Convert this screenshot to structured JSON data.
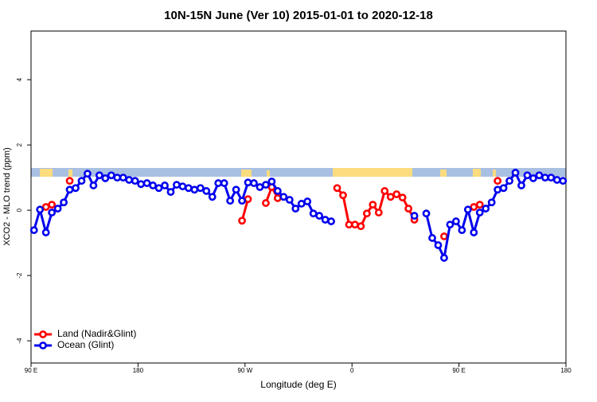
{
  "chart_data": {
    "type": "line",
    "title": "10N-15N June (Ver 10)   2015-01-01 to 2020-12-18",
    "xlabel": "Longitude (deg E)",
    "ylabel": "XCO2 - MLO trend (ppm)",
    "x": [
      92.5,
      97.5,
      102.5,
      107.5,
      112.5,
      117.5,
      122.5,
      127.5,
      132.5,
      137.5,
      142.5,
      147.5,
      152.5,
      157.5,
      162.5,
      167.5,
      172.5,
      177.5,
      182.5,
      187.5,
      192.5,
      197.5,
      202.5,
      207.5,
      212.5,
      217.5,
      222.5,
      227.5,
      232.5,
      237.5,
      242.5,
      247.5,
      252.5,
      257.5,
      262.5,
      267.5,
      272.5,
      277.5,
      282.5,
      287.5,
      292.5,
      297.5,
      302.5,
      307.5,
      312.5,
      317.5,
      322.5,
      327.5,
      332.5,
      337.5,
      342.5,
      347.5,
      352.5,
      357.5,
      362.5,
      367.5,
      372.5,
      377.5,
      382.5,
      387.5,
      392.5,
      397.5,
      402.5,
      407.5,
      412.5,
      417.5,
      422.5,
      427.5,
      432.5,
      437.5,
      442.5,
      447.5,
      452.5,
      457.5,
      462.5,
      467.5,
      472.5,
      477.5,
      482.5,
      487.5,
      492.5,
      497.5,
      502.5,
      507.5,
      512.5,
      517.5,
      522.5,
      527.5,
      532.5,
      537.5
    ],
    "series": [
      {
        "name": "Land (Nadir&Glint)",
        "color": "#ff0000",
        "values": [
          null,
          null,
          0.1,
          0.17,
          null,
          null,
          0.9,
          null,
          null,
          null,
          null,
          null,
          null,
          null,
          null,
          null,
          null,
          null,
          null,
          null,
          null,
          null,
          null,
          null,
          null,
          null,
          null,
          null,
          null,
          null,
          null,
          null,
          null,
          null,
          null,
          -0.32,
          0.34,
          null,
          null,
          0.22,
          0.71,
          0.37,
          null,
          null,
          null,
          null,
          null,
          null,
          null,
          null,
          null,
          0.68,
          0.46,
          -0.44,
          -0.44,
          -0.49,
          -0.1,
          0.17,
          -0.07,
          0.59,
          0.41,
          0.49,
          0.39,
          0.05,
          -0.29,
          null,
          null,
          null,
          null,
          -0.8,
          null,
          null,
          null,
          null,
          0.1,
          0.17,
          null,
          null,
          0.9,
          null,
          null,
          null,
          null,
          null,
          null,
          null,
          null,
          null,
          null,
          null
        ]
      },
      {
        "name": "Ocean (Glint)",
        "color": "#0000ee",
        "values": [
          -0.61,
          0.02,
          -0.68,
          -0.07,
          0.05,
          0.24,
          0.63,
          0.68,
          0.9,
          1.12,
          0.76,
          1.07,
          0.98,
          1.07,
          1.0,
          1.0,
          0.93,
          0.9,
          0.8,
          0.83,
          0.76,
          0.68,
          0.76,
          0.56,
          0.78,
          0.73,
          0.68,
          0.63,
          0.68,
          0.59,
          0.41,
          0.83,
          0.83,
          0.29,
          0.63,
          0.29,
          0.85,
          0.83,
          0.71,
          0.78,
          0.88,
          0.59,
          0.41,
          0.32,
          0.05,
          0.2,
          0.27,
          -0.1,
          -0.17,
          -0.29,
          -0.34,
          null,
          null,
          null,
          null,
          null,
          null,
          null,
          null,
          null,
          null,
          null,
          null,
          null,
          -0.17,
          null,
          -0.1,
          -0.85,
          -1.07,
          -1.46,
          -0.44,
          -0.34,
          -0.61,
          0.02,
          -0.68,
          -0.07,
          0.05,
          0.24,
          0.63,
          0.68,
          0.9,
          1.15,
          0.76,
          1.07,
          0.98,
          1.07,
          1.0,
          1.0,
          0.93,
          0.9
        ]
      }
    ],
    "xlim": [
      90,
      540
    ],
    "xticks": [
      {
        "value": 90,
        "label": "90 E"
      },
      {
        "value": 180,
        "label": "180"
      },
      {
        "value": 270,
        "label": "90 W"
      },
      {
        "value": 360,
        "label": "0"
      },
      {
        "value": 450,
        "label": "90 E"
      },
      {
        "value": 540,
        "label": "180"
      }
    ],
    "ylim": [
      -4.68,
      5.49
    ],
    "yticks": [
      -4,
      -2,
      0,
      2,
      4
    ],
    "legend": "bottomleft"
  }
}
